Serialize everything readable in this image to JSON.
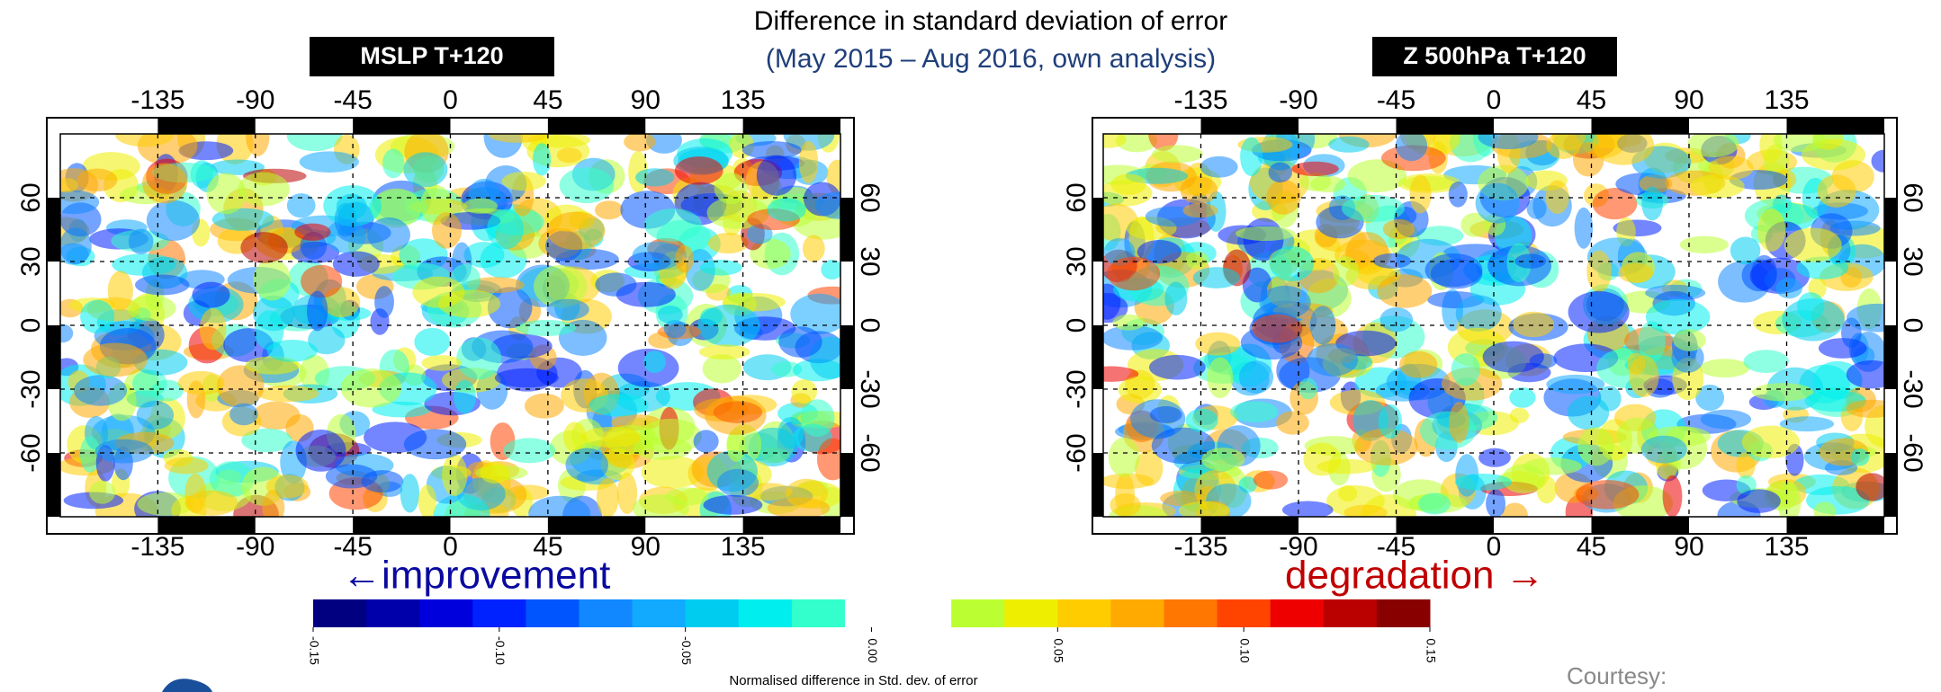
{
  "header": {
    "title": "Difference in standard deviation of error",
    "subtitle": "(May 2015 – Aug 2016, own analysis)"
  },
  "maps": [
    {
      "label": "MSLP T+120",
      "xlim": [
        -180,
        180
      ],
      "ylim": [
        -90,
        90
      ],
      "xticks": [
        -135,
        -90,
        -45,
        0,
        45,
        90,
        135
      ],
      "yticks": [
        -60,
        -30,
        0,
        30,
        60
      ],
      "grid": true
    },
    {
      "label": "Z 500hPa T+120",
      "xlim": [
        -180,
        180
      ],
      "ylim": [
        -90,
        90
      ],
      "xticks": [
        -135,
        -90,
        -45,
        0,
        45,
        90,
        135
      ],
      "yticks": [
        -60,
        -30,
        0,
        30,
        60
      ],
      "grid": true
    }
  ],
  "annotations": {
    "improvement": "←improvement",
    "degradation": "degradation →"
  },
  "colorbar": {
    "label": "Normalised difference in Std. dev. of error",
    "lim": [
      -0.15,
      0.15
    ],
    "ticks": [
      {
        "value": -0.15,
        "label": "-0.15"
      },
      {
        "value": -0.1,
        "label": "-0.10"
      },
      {
        "value": -0.05,
        "label": "-0.05"
      },
      {
        "value": 0,
        "label": "0.00"
      },
      {
        "value": 0.05,
        "label": "0.05"
      },
      {
        "value": 0.1,
        "label": "0.10"
      },
      {
        "value": 0.15,
        "label": "0.15"
      }
    ],
    "colors": [
      "#000080",
      "#0000aa",
      "#0000dd",
      "#0022ff",
      "#0055ff",
      "#1188ff",
      "#11aaff",
      "#00ccf0",
      "#00eeee",
      "#33ffcc",
      "#ffffff",
      "#ffffff",
      "#bbff33",
      "#eeee00",
      "#ffcc00",
      "#ffaa00",
      "#ff7700",
      "#ff4400",
      "#ee0000",
      "#bb0000",
      "#880000"
    ]
  },
  "credit": "Courtesy:"
}
